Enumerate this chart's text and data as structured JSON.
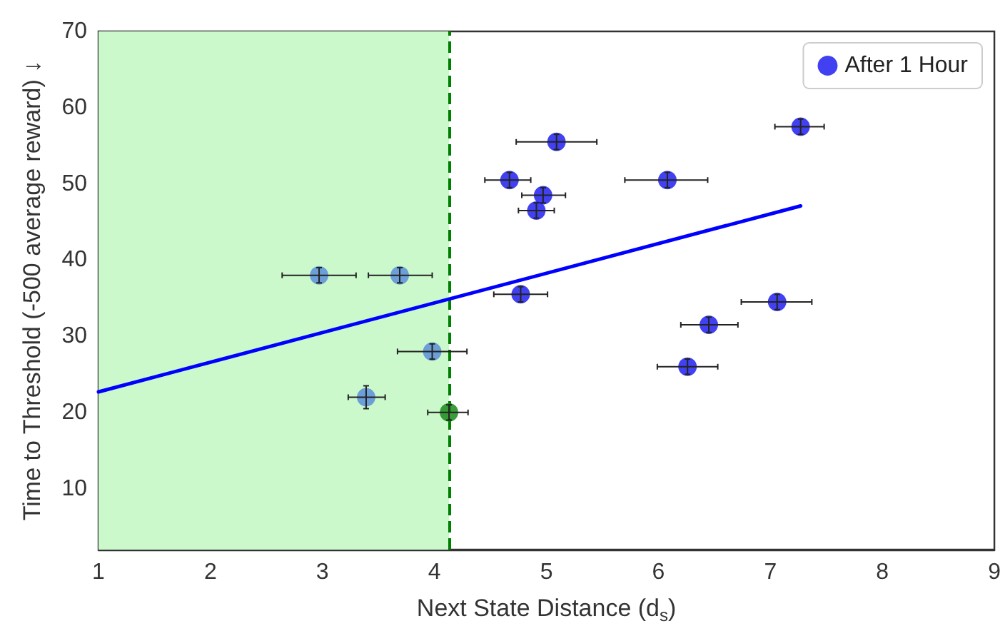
{
  "chart_data": {
    "type": "scatter",
    "xlabel": "Next State Distance (d$_{s}$)",
    "ylabel": "Time to Threshold (-500 average reward) ↓",
    "xlim": [
      1,
      9
    ],
    "xticks": [
      1,
      2,
      3,
      4,
      5,
      6,
      7,
      8,
      9
    ],
    "ylim": [
      2,
      70
    ],
    "yticks": [
      10,
      20,
      30,
      40,
      50,
      60,
      70
    ],
    "grid": false,
    "legend": "top right",
    "marker": "circle",
    "series": [
      {
        "name": "After 1 Hour",
        "color": "#2020f0",
        "x": [
          2.97,
          3.69,
          3.98,
          3.39,
          5.09,
          4.67,
          4.97,
          4.91,
          6.08,
          7.27,
          4.77,
          7.06,
          6.45,
          6.26
        ],
        "values": [
          38,
          38,
          28,
          22,
          55.5,
          50.5,
          48.5,
          46.5,
          50.5,
          57.5,
          35.5,
          34.5,
          31.5,
          26
        ],
        "colors": [
          "#5a8fd8",
          "#5a8fd8",
          "#5a8fd8",
          "#5a8fd8",
          "#2020f0",
          "#2020f0",
          "#2020f0",
          "#2020f0",
          "#2020f0",
          "#2020f0",
          "#2020f0",
          "#2020f0",
          "#2020f0",
          "#2020f0"
        ],
        "errors": [
          1,
          1,
          1,
          1.5,
          1,
          1,
          1,
          1,
          1,
          1,
          1,
          1,
          1,
          1
        ],
        "xerrors": [
          [
            2.64,
            3.3
          ],
          [
            3.41,
            3.98
          ],
          [
            3.67,
            4.29
          ],
          [
            3.23,
            3.56
          ],
          [
            4.73,
            5.45
          ],
          [
            4.45,
            4.86
          ],
          [
            4.78,
            5.17
          ],
          [
            4.75,
            5.07
          ],
          [
            5.7,
            6.44
          ],
          [
            7.04,
            7.48
          ],
          [
            4.53,
            5.01
          ],
          [
            6.74,
            7.37
          ],
          [
            6.2,
            6.71
          ],
          [
            5.99,
            6.53
          ]
        ]
      },
      {
        "color": "#1a8a1a",
        "x": [
          4.13
        ],
        "values": [
          20
        ],
        "xerrors": [
          [
            3.94,
            4.3
          ]
        ],
        "errors": [
          1
        ]
      },
      {
        "type": "line",
        "color": "#0000ff",
        "marker": "none",
        "x": [
          1,
          7.27
        ],
        "values": [
          22.7,
          47.1
        ]
      }
    ],
    "ref_lines": [
      {
        "axis": "x",
        "value": 4.13,
        "color": "#008000",
        "line_style": "dashed"
      }
    ],
    "bands": [
      {
        "axis": "x",
        "from": 1,
        "to": 4.13,
        "color": "#ccf9cc"
      }
    ]
  }
}
